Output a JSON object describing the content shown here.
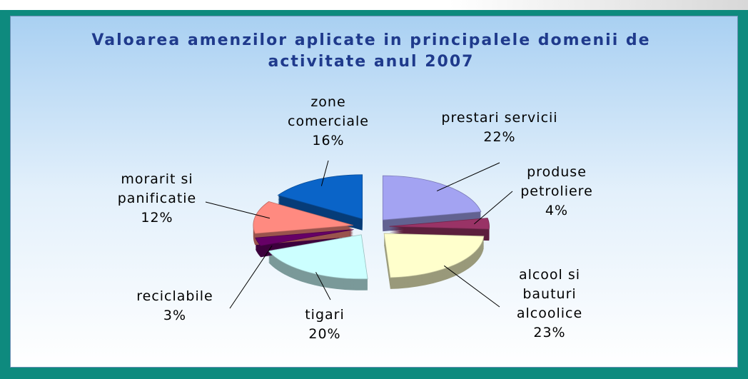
{
  "chart_data": {
    "type": "pie",
    "title": "Valoarea amenzilor aplicate in principalele domenii de activitate  anul 2007",
    "categories": [
      "prestari servicii",
      "produse petroliere",
      "alcool si bauturi alcoolice",
      "tigari",
      "reciclabile",
      "morarit si panificatie",
      "zone comerciale"
    ],
    "values": [
      22,
      4,
      23,
      20,
      3,
      12,
      16
    ],
    "value_labels": [
      "22%",
      "4%",
      "23%",
      "20%",
      "3%",
      "12%",
      "16%"
    ],
    "colors": [
      "#a3a3f2",
      "#993366",
      "#ffffcc",
      "#ccffff",
      "#660066",
      "#ff8a80",
      "#0a64c8"
    ],
    "exploded": true,
    "three_d": true
  }
}
